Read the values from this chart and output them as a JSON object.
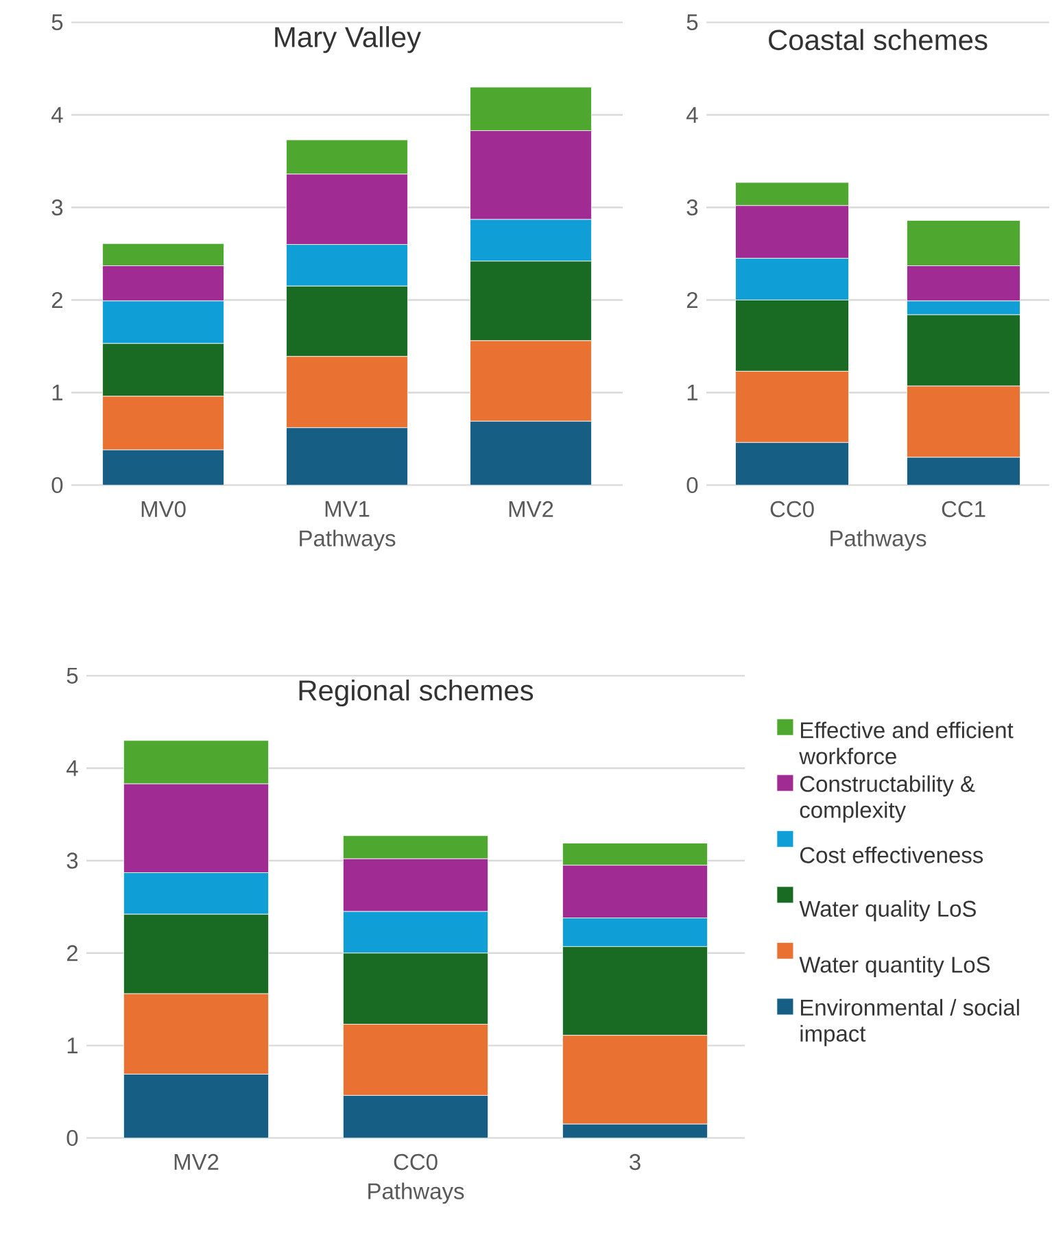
{
  "chart_data": [
    {
      "type": "bar",
      "stacked": true,
      "title": "Mary Valley",
      "xlabel": "Pathways",
      "categories": [
        "MV0",
        "MV1",
        "MV2"
      ],
      "ylim": [
        0,
        5
      ],
      "yticks": [
        0,
        1,
        2,
        3,
        4,
        5
      ],
      "grid": "y",
      "series": [
        {
          "color": "#165E83",
          "values": [
            0.38,
            0.62,
            0.69
          ]
        },
        {
          "color": "#E97132",
          "values": [
            0.58,
            0.77,
            0.87
          ]
        },
        {
          "color": "#196B24",
          "values": [
            0.57,
            0.76,
            0.86
          ]
        },
        {
          "color": "#0F9ED5",
          "values": [
            0.46,
            0.45,
            0.45
          ]
        },
        {
          "color": "#A02B93",
          "values": [
            0.38,
            0.76,
            0.96
          ]
        },
        {
          "color": "#4EA72E",
          "values": [
            0.24,
            0.37,
            0.47
          ]
        }
      ]
    },
    {
      "type": "bar",
      "stacked": true,
      "title": "Coastal schemes",
      "xlabel": "Pathways",
      "categories": [
        "CC0",
        "CC1"
      ],
      "ylim": [
        0,
        5
      ],
      "yticks": [
        0,
        1,
        2,
        3,
        4,
        5
      ],
      "grid": "y",
      "series": [
        {
          "color": "#165E83",
          "values": [
            0.46,
            0.3
          ]
        },
        {
          "color": "#E97132",
          "values": [
            0.77,
            0.77
          ]
        },
        {
          "color": "#196B24",
          "values": [
            0.77,
            0.77
          ]
        },
        {
          "color": "#0F9ED5",
          "values": [
            0.45,
            0.15
          ]
        },
        {
          "color": "#A02B93",
          "values": [
            0.57,
            0.38
          ]
        },
        {
          "color": "#4EA72E",
          "values": [
            0.25,
            0.49
          ]
        }
      ]
    },
    {
      "type": "bar",
      "stacked": true,
      "title": "Regional schemes",
      "xlabel": "Pathways",
      "categories": [
        "MV2",
        "CC0",
        "3"
      ],
      "ylim": [
        0,
        5
      ],
      "yticks": [
        0,
        1,
        2,
        3,
        4,
        5
      ],
      "grid": "y",
      "legend": "right",
      "series": [
        {
          "name": "Environmental / social impact",
          "color": "#165E83",
          "values": [
            0.69,
            0.46,
            0.15
          ]
        },
        {
          "name": "Water quantity LoS",
          "color": "#E97132",
          "values": [
            0.87,
            0.77,
            0.96
          ]
        },
        {
          "name": "Water quality LoS",
          "color": "#196B24",
          "values": [
            0.86,
            0.77,
            0.96
          ]
        },
        {
          "name": "Cost effectiveness",
          "color": "#0F9ED5",
          "values": [
            0.45,
            0.45,
            0.31
          ]
        },
        {
          "name": "Constructability & complexity",
          "color": "#A02B93",
          "values": [
            0.96,
            0.57,
            0.57
          ]
        },
        {
          "name": "Effective and efficient workforce",
          "color": "#4EA72E",
          "values": [
            0.47,
            0.25,
            0.24
          ]
        }
      ]
    }
  ]
}
